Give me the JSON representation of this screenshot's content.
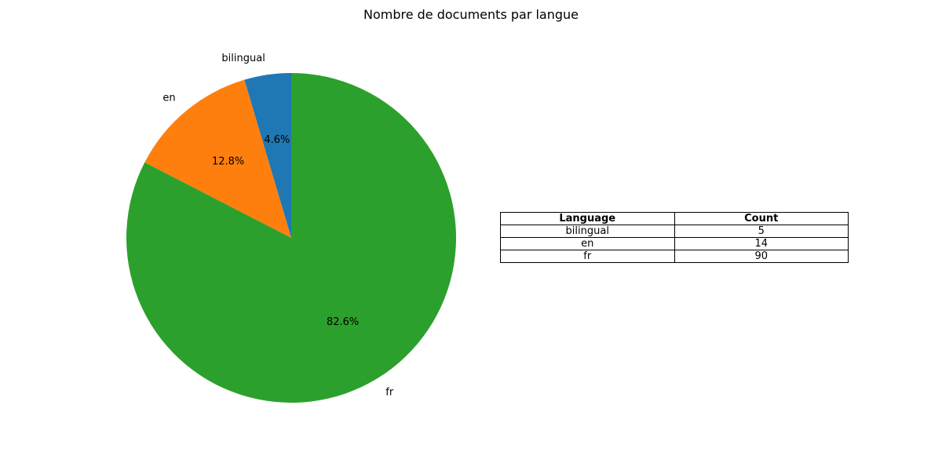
{
  "chart_data": {
    "type": "pie",
    "title": "Nombre de documents par langue",
    "categories": [
      "bilingual",
      "en",
      "fr"
    ],
    "values": [
      5,
      14,
      90
    ],
    "percent_labels": [
      "4.6%",
      "12.8%",
      "82.6%"
    ],
    "colors": [
      "#1f77b4",
      "#ff7f0e",
      "#2ca02c"
    ],
    "start_angle_deg": 90,
    "direction": "counterclockwise"
  },
  "table": {
    "headers": [
      "Language",
      "Count"
    ],
    "rows": [
      [
        "bilingual",
        "5"
      ],
      [
        "en",
        "14"
      ],
      [
        "fr",
        "90"
      ]
    ]
  }
}
